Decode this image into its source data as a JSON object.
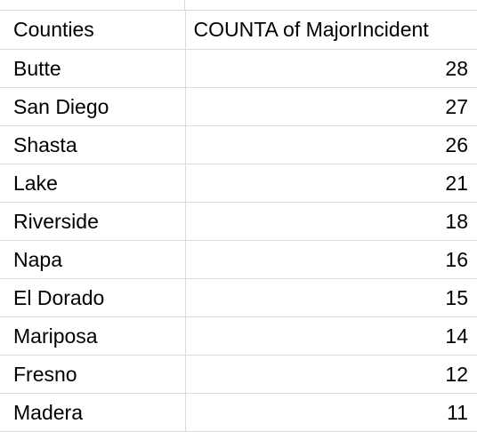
{
  "table": {
    "headers": {
      "counties": "Counties",
      "count": "COUNTA of MajorIncident"
    },
    "rows": [
      {
        "county": "Butte",
        "count": "28"
      },
      {
        "county": "San Diego",
        "count": "27"
      },
      {
        "county": "Shasta",
        "count": "26"
      },
      {
        "county": "Lake",
        "count": "21"
      },
      {
        "county": "Riverside",
        "count": "18"
      },
      {
        "county": "Napa",
        "count": "16"
      },
      {
        "county": "El Dorado",
        "count": "15"
      },
      {
        "county": "Mariposa",
        "count": "14"
      },
      {
        "county": "Fresno",
        "count": "12"
      },
      {
        "county": "Madera",
        "count": "11"
      }
    ]
  }
}
